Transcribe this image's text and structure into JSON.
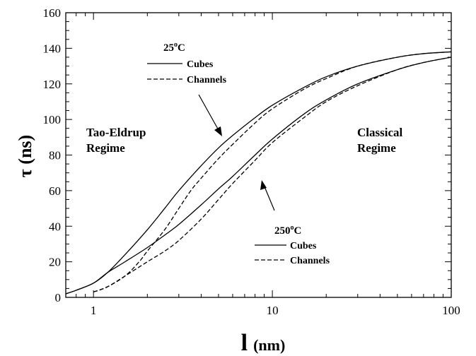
{
  "chart_data": {
    "type": "line",
    "title": "",
    "xlabel": "l",
    "xlabel_unit": "(nm)",
    "ylabel": "τ (ns)",
    "x_scale": "log",
    "xlim": [
      0.7,
      100
    ],
    "ylim": [
      0,
      160
    ],
    "x_ticks": [
      1,
      10,
      100
    ],
    "x_tick_labels": [
      "1",
      "10",
      "100"
    ],
    "y_ticks": [
      0,
      20,
      40,
      60,
      80,
      100,
      120,
      140,
      160
    ],
    "y_tick_labels": [
      "0",
      "20",
      "40",
      "60",
      "80",
      "100",
      "120",
      "140",
      "160"
    ],
    "grid": false,
    "legend": [
      {
        "temperature": "25°C",
        "temp_value": "25",
        "temp_unit": "C",
        "entries": [
          {
            "label": "Cubes",
            "style": "solid"
          },
          {
            "label": "Channels",
            "style": "dashed"
          }
        ]
      },
      {
        "temperature": "250°C",
        "temp_value": "250",
        "temp_unit": "C",
        "entries": [
          {
            "label": "Cubes",
            "style": "solid"
          },
          {
            "label": "Channels",
            "style": "dashed"
          }
        ]
      }
    ],
    "annotations": [
      {
        "lines": [
          "Tao-Eldrup",
          "Regime"
        ]
      },
      {
        "lines": [
          "Classical",
          "Regime"
        ]
      }
    ],
    "series": [
      {
        "group": "25°C",
        "style": "solid",
        "x": [
          0.7,
          0.8,
          1,
          1.2,
          1.5,
          2,
          2.5,
          3,
          4,
          5,
          6,
          8,
          10,
          15,
          20,
          30,
          50,
          70,
          100
        ],
        "y": [
          2,
          4,
          8,
          14,
          24,
          38,
          50,
          60,
          74,
          84,
          91,
          101,
          108,
          118,
          124,
          130,
          135,
          137,
          138
        ]
      },
      {
        "group": "25°C",
        "style": "dashed",
        "x": [
          1,
          1.2,
          1.5,
          1.8,
          2,
          2.5,
          3,
          3.5,
          4,
          5,
          6,
          8,
          10,
          15,
          20,
          30,
          50,
          70,
          100
        ],
        "y": [
          3,
          6,
          12,
          20,
          26,
          38,
          50,
          60,
          67,
          78,
          86,
          98,
          106,
          117,
          123,
          130,
          135,
          137,
          138
        ]
      },
      {
        "group": "250°C",
        "style": "solid",
        "x": [
          0.7,
          0.8,
          1,
          1.2,
          1.5,
          2,
          2.5,
          3,
          4,
          5,
          6,
          8,
          10,
          15,
          20,
          30,
          50,
          70,
          100
        ],
        "y": [
          2,
          4,
          8,
          14,
          20,
          28,
          35,
          41,
          52,
          61,
          68,
          80,
          89,
          103,
          111,
          120,
          128,
          132,
          135
        ]
      },
      {
        "group": "250°C",
        "style": "dashed",
        "x": [
          1,
          1.2,
          1.5,
          2,
          2.5,
          3,
          4,
          5,
          6,
          8,
          10,
          15,
          20,
          30,
          50,
          70,
          100
        ],
        "y": [
          3,
          6,
          12,
          20,
          26,
          32,
          44,
          55,
          64,
          77,
          87,
          101,
          110,
          119,
          128,
          132,
          135
        ]
      }
    ]
  }
}
